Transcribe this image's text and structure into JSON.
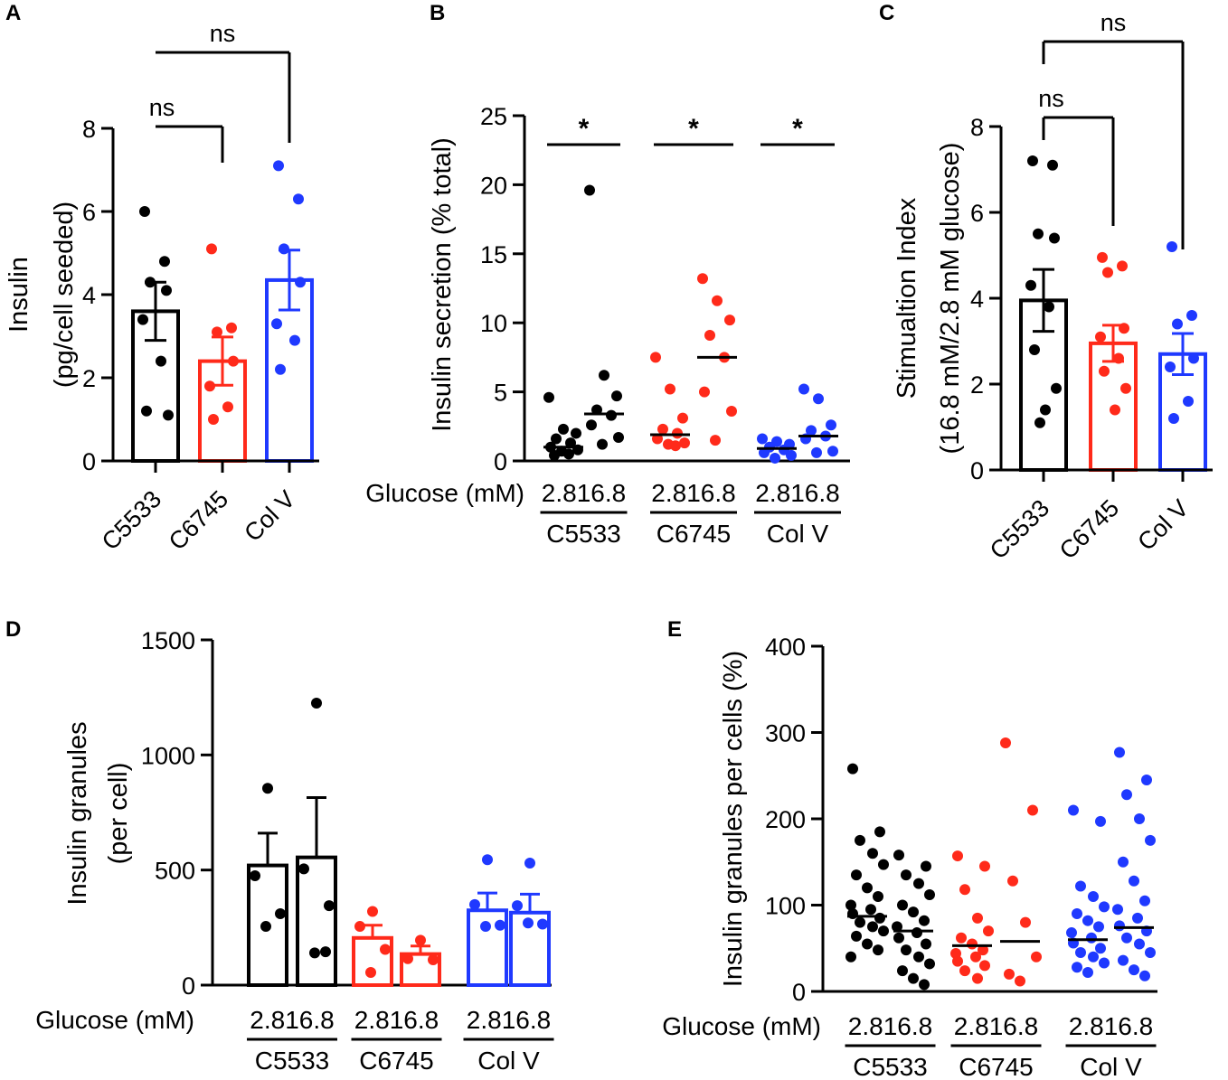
{
  "colors": {
    "C5533": "#000000",
    "C6745": "#ff2a1a",
    "ColV": "#1f39ff",
    "axis": "#000000"
  },
  "chart_data": [
    {
      "panel": "A",
      "type": "bar",
      "ylabel_lines": [
        "Insulin",
        "(pg/cell seeded)"
      ],
      "ylim": [
        0,
        8
      ],
      "yticks": [
        "0",
        "2",
        "4",
        "6",
        "8"
      ],
      "categories": [
        "C5533",
        "C6745",
        "Col V"
      ],
      "bars": [
        {
          "name": "C5533",
          "color": "C5533",
          "mean": 3.6,
          "sem": 0.7,
          "points": [
            6.0,
            4.8,
            4.3,
            4.1,
            3.4,
            2.4,
            1.2,
            1.1
          ]
        },
        {
          "name": "C6745",
          "color": "C6745",
          "mean": 2.4,
          "sem": 0.58,
          "points": [
            5.1,
            3.2,
            3.1,
            2.4,
            1.8,
            1.3,
            1.0
          ]
        },
        {
          "name": "Col V",
          "color": "ColV",
          "mean": 4.35,
          "sem": 0.72,
          "points": [
            7.1,
            6.3,
            5.1,
            4.3,
            3.3,
            2.9,
            2.2
          ]
        }
      ],
      "brackets": [
        {
          "from": 0,
          "to": 1,
          "label": "ns"
        },
        {
          "from": 0,
          "to": 2,
          "label": "ns"
        }
      ]
    },
    {
      "panel": "B",
      "type": "scatter",
      "ylabel": "Insulin secretion (% total)",
      "xlabel_prefix": "Glucose (mM)",
      "ylim": [
        0,
        25
      ],
      "yticks": [
        "0",
        "5",
        "10",
        "15",
        "20",
        "25"
      ],
      "x_labels": [
        "2.8",
        "16.8"
      ],
      "group_labels": [
        "C5533",
        "C6745",
        "Col V"
      ],
      "columns": [
        {
          "group": "C5533",
          "glucose": "2.8",
          "color": "C5533",
          "median": 1.0,
          "points": [
            4.6,
            2.3,
            2.0,
            1.6,
            1.3,
            1.0,
            0.8,
            0.7,
            0.5,
            0.4
          ]
        },
        {
          "group": "C5533",
          "glucose": "16.8",
          "color": "C5533",
          "median": 3.4,
          "points": [
            19.6,
            6.2,
            4.7,
            3.7,
            3.3,
            2.6,
            1.7,
            1.2
          ]
        },
        {
          "group": "C6745",
          "glucose": "2.8",
          "color": "C6745",
          "median": 1.9,
          "points": [
            7.5,
            5.2,
            3.1,
            2.3,
            2.0,
            1.6,
            1.3,
            1.2,
            1.1
          ]
        },
        {
          "group": "C6745",
          "glucose": "16.8",
          "color": "C6745",
          "median": 7.5,
          "points": [
            13.2,
            11.6,
            10.2,
            9.1,
            7.5,
            5.0,
            3.6,
            1.5
          ]
        },
        {
          "group": "Col V",
          "glucose": "2.8",
          "color": "ColV",
          "median": 0.9,
          "points": [
            1.6,
            1.4,
            1.2,
            1.0,
            0.8,
            0.6,
            0.4,
            0.2
          ]
        },
        {
          "group": "Col V",
          "glucose": "16.8",
          "color": "ColV",
          "median": 1.8,
          "points": [
            5.2,
            4.5,
            2.6,
            2.2,
            1.8,
            1.6,
            0.7,
            0.6
          ]
        }
      ],
      "significance": [
        {
          "group": 0,
          "label": "*"
        },
        {
          "group": 1,
          "label": "*"
        },
        {
          "group": 2,
          "label": "*"
        }
      ]
    },
    {
      "panel": "C",
      "type": "bar",
      "ylabel_lines": [
        "Stimualtion Index",
        "(16.8 mM/2.8 mM glucose)"
      ],
      "ylim": [
        0,
        8
      ],
      "yticks": [
        "0",
        "2",
        "4",
        "6",
        "8"
      ],
      "categories": [
        "C5533",
        "C6745",
        "Col V"
      ],
      "bars": [
        {
          "name": "C5533",
          "color": "C5533",
          "mean": 3.95,
          "sem": 0.72,
          "points": [
            7.2,
            7.1,
            5.5,
            5.4,
            4.3,
            3.8,
            2.8,
            1.9,
            1.4,
            1.1
          ]
        },
        {
          "name": "C6745",
          "color": "C6745",
          "mean": 2.95,
          "sem": 0.42,
          "points": [
            4.95,
            4.75,
            4.6,
            3.3,
            3.1,
            2.6,
            2.3,
            1.9,
            1.4
          ]
        },
        {
          "name": "Col V",
          "color": "ColV",
          "mean": 2.7,
          "sem": 0.48,
          "points": [
            5.2,
            3.6,
            3.4,
            2.6,
            2.4,
            1.6,
            1.2
          ]
        }
      ],
      "brackets": [
        {
          "from": 0,
          "to": 1,
          "label": "ns"
        },
        {
          "from": 0,
          "to": 2,
          "label": "ns"
        }
      ]
    },
    {
      "panel": "D",
      "type": "bar",
      "ylabel_lines": [
        "Insulin granules",
        "(per cell)"
      ],
      "xlabel_prefix": "Glucose (mM)",
      "ylim": [
        0,
        1500
      ],
      "yticks": [
        "0",
        "500",
        "1000",
        "1500"
      ],
      "x_labels": [
        "2.8",
        "16.8"
      ],
      "group_labels": [
        "C5533",
        "C6745",
        "Col V"
      ],
      "columns": [
        {
          "group": "C5533",
          "glucose": "2.8",
          "color": "C5533",
          "mean": 520,
          "sem": 140,
          "points": [
            855,
            475,
            310,
            255
          ]
        },
        {
          "group": "C5533",
          "glucose": "16.8",
          "color": "C5533",
          "mean": 555,
          "sem": 260,
          "points": [
            1225,
            505,
            345,
            140,
            145
          ]
        },
        {
          "group": "C6745",
          "glucose": "2.8",
          "color": "C6745",
          "mean": 205,
          "sem": 55,
          "points": [
            320,
            255,
            155,
            55
          ]
        },
        {
          "group": "C6745",
          "glucose": "16.8",
          "color": "C6745",
          "mean": 135,
          "sem": 35,
          "points": [
            195,
            115,
            110
          ]
        },
        {
          "group": "Col V",
          "glucose": "2.8",
          "color": "ColV",
          "mean": 325,
          "sem": 75,
          "points": [
            545,
            350,
            260,
            255
          ]
        },
        {
          "group": "Col V",
          "glucose": "16.8",
          "color": "ColV",
          "mean": 315,
          "sem": 80,
          "points": [
            530,
            345,
            265,
            270
          ]
        }
      ]
    },
    {
      "panel": "E",
      "type": "scatter",
      "ylabel": "Insulin granules per cells (%)",
      "xlabel_prefix": "Glucose (mM)",
      "ylim": [
        0,
        400
      ],
      "yticks": [
        "0",
        "100",
        "200",
        "300",
        "400"
      ],
      "x_labels": [
        "2.8",
        "16.8"
      ],
      "group_labels": [
        "C5533",
        "C6745",
        "Col V"
      ],
      "columns": [
        {
          "group": "C5533",
          "glucose": "2.8",
          "color": "C5533",
          "median": 87,
          "points": [
            258,
            185,
            175,
            160,
            147,
            135,
            120,
            110,
            100,
            95,
            90,
            85,
            80,
            75,
            70,
            64,
            55,
            48,
            40
          ]
        },
        {
          "group": "C5533",
          "glucose": "16.8",
          "color": "C5533",
          "median": 70,
          "points": [
            158,
            145,
            135,
            125,
            112,
            100,
            92,
            82,
            75,
            68,
            62,
            55,
            48,
            40,
            32,
            24,
            15,
            8
          ]
        },
        {
          "group": "C6745",
          "glucose": "2.8",
          "color": "C6745",
          "median": 53,
          "points": [
            157,
            145,
            118,
            85,
            70,
            62,
            55,
            48,
            44,
            40,
            35,
            30,
            24,
            15
          ]
        },
        {
          "group": "C6745",
          "glucose": "16.8",
          "color": "C6745",
          "median": 58,
          "points": [
            288,
            210,
            128,
            80,
            40,
            20,
            12
          ]
        },
        {
          "group": "Col V",
          "glucose": "2.8",
          "color": "ColV",
          "median": 60,
          "points": [
            210,
            197,
            122,
            110,
            98,
            90,
            82,
            75,
            68,
            62,
            56,
            50,
            45,
            40,
            33,
            28,
            22
          ]
        },
        {
          "group": "Col V",
          "glucose": "16.8",
          "color": "ColV",
          "median": 74,
          "points": [
            277,
            245,
            228,
            200,
            175,
            150,
            128,
            105,
            95,
            85,
            76,
            70,
            62,
            55,
            45,
            36,
            25,
            18
          ]
        }
      ]
    }
  ]
}
